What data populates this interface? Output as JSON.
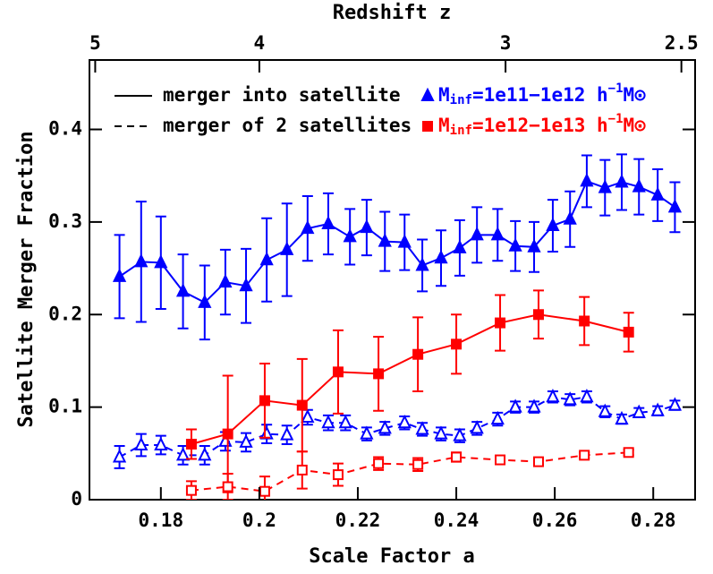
{
  "chart_data": {
    "type": "line",
    "x_label": "Scale Factor a",
    "y_label": "Satellite Merger Fraction",
    "x2_label": "Redshift z",
    "xlim": [
      0.1655,
      0.2885
    ],
    "ylim": [
      0,
      0.475
    ],
    "xticks": [
      0.18,
      0.2,
      0.22,
      0.24,
      0.26,
      0.28
    ],
    "yticks": [
      0,
      0.1,
      0.2,
      0.3,
      0.4
    ],
    "x2ticks": [
      5,
      4,
      3,
      2.5
    ],
    "line_styles": [
      {
        "label": "merger into satellite",
        "dashed": false
      },
      {
        "label": "merger of 2 satellites",
        "dashed": true
      }
    ],
    "mass_bins": [
      {
        "symbol": "M",
        "subscript": "inf",
        "range": "=1e11−1e12 h",
        "superscript": "−1",
        "unit": "M⊙",
        "color": "#0000ff",
        "marker": "triangle"
      },
      {
        "symbol": "M",
        "subscript": "inf",
        "range": "=1e12−1e13 h",
        "superscript": "−1",
        "unit": "M⊙",
        "color": "#ff0000",
        "marker": "square"
      }
    ],
    "series": [
      {
        "mass_bin": 0,
        "style": 0,
        "filled": true,
        "x": [
          0.1716,
          0.176,
          0.18,
          0.1845,
          0.1889,
          0.1931,
          0.1973,
          0.2015,
          0.2056,
          0.2098,
          0.214,
          0.2184,
          0.2218,
          0.2255,
          0.2295,
          0.2331,
          0.2369,
          0.2407,
          0.2442,
          0.2484,
          0.252,
          0.2558,
          0.2596,
          0.2631,
          0.2665,
          0.2702,
          0.2736,
          0.2771,
          0.2809,
          0.2844
        ],
        "values": [
          0.241,
          0.257,
          0.256,
          0.225,
          0.213,
          0.235,
          0.231,
          0.259,
          0.27,
          0.293,
          0.298,
          0.284,
          0.294,
          0.279,
          0.278,
          0.253,
          0.261,
          0.272,
          0.286,
          0.286,
          0.274,
          0.273,
          0.296,
          0.303,
          0.344,
          0.337,
          0.343,
          0.338,
          0.329,
          0.316
        ],
        "errors": [
          0.045,
          0.065,
          0.05,
          0.04,
          0.04,
          0.035,
          0.04,
          0.045,
          0.05,
          0.035,
          0.033,
          0.03,
          0.03,
          0.032,
          0.03,
          0.028,
          0.03,
          0.03,
          0.03,
          0.028,
          0.027,
          0.027,
          0.028,
          0.03,
          0.028,
          0.03,
          0.03,
          0.03,
          0.028,
          0.027
        ]
      },
      {
        "mass_bin": 0,
        "style": 1,
        "filled": false,
        "x": [
          0.1716,
          0.176,
          0.18,
          0.1845,
          0.1889,
          0.1931,
          0.1973,
          0.2015,
          0.2056,
          0.2098,
          0.214,
          0.2175,
          0.2218,
          0.2255,
          0.2295,
          0.2331,
          0.2369,
          0.2407,
          0.2442,
          0.2484,
          0.252,
          0.2558,
          0.2596,
          0.2631,
          0.2665,
          0.2702,
          0.2736,
          0.2771,
          0.2809,
          0.2844
        ],
        "values": [
          0.046,
          0.059,
          0.059,
          0.048,
          0.048,
          0.063,
          0.062,
          0.071,
          0.07,
          0.089,
          0.083,
          0.083,
          0.071,
          0.077,
          0.083,
          0.076,
          0.071,
          0.069,
          0.077,
          0.087,
          0.1,
          0.1,
          0.111,
          0.108,
          0.111,
          0.095,
          0.087,
          0.094,
          0.096,
          0.102
        ],
        "errors": [
          0.012,
          0.012,
          0.01,
          0.01,
          0.01,
          0.01,
          0.01,
          0.01,
          0.01,
          0.008,
          0.008,
          0.008,
          0.007,
          0.007,
          0.007,
          0.007,
          0.007,
          0.007,
          0.007,
          0.007,
          0.006,
          0.006,
          0.006,
          0.006,
          0.006,
          0.006,
          0.005,
          0.005,
          0.005,
          0.005
        ]
      },
      {
        "mass_bin": 1,
        "style": 0,
        "filled": true,
        "x": [
          0.1862,
          0.1936,
          0.2011,
          0.2087,
          0.216,
          0.2242,
          0.2322,
          0.24,
          0.2489,
          0.2567,
          0.266,
          0.275
        ],
        "values": [
          0.06,
          0.071,
          0.107,
          0.102,
          0.138,
          0.136,
          0.157,
          0.168,
          0.191,
          0.2,
          0.193,
          0.181
        ],
        "errors": [
          0.016,
          0.063,
          0.04,
          0.05,
          0.045,
          0.04,
          0.04,
          0.032,
          0.03,
          0.026,
          0.026,
          0.021
        ]
      },
      {
        "mass_bin": 1,
        "style": 1,
        "filled": false,
        "x": [
          0.1862,
          0.1936,
          0.2011,
          0.2087,
          0.216,
          0.2242,
          0.2322,
          0.24,
          0.2489,
          0.2567,
          0.266,
          0.275
        ],
        "values": [
          0.01,
          0.014,
          0.009,
          0.032,
          0.027,
          0.039,
          0.038,
          0.046,
          0.043,
          0.041,
          0.048,
          0.051
        ],
        "errors": [
          0.01,
          0.014,
          0.016,
          0.02,
          0.012,
          0.007,
          0.007,
          0.005,
          0.004,
          0.003,
          0.003,
          0.003
        ]
      }
    ]
  }
}
